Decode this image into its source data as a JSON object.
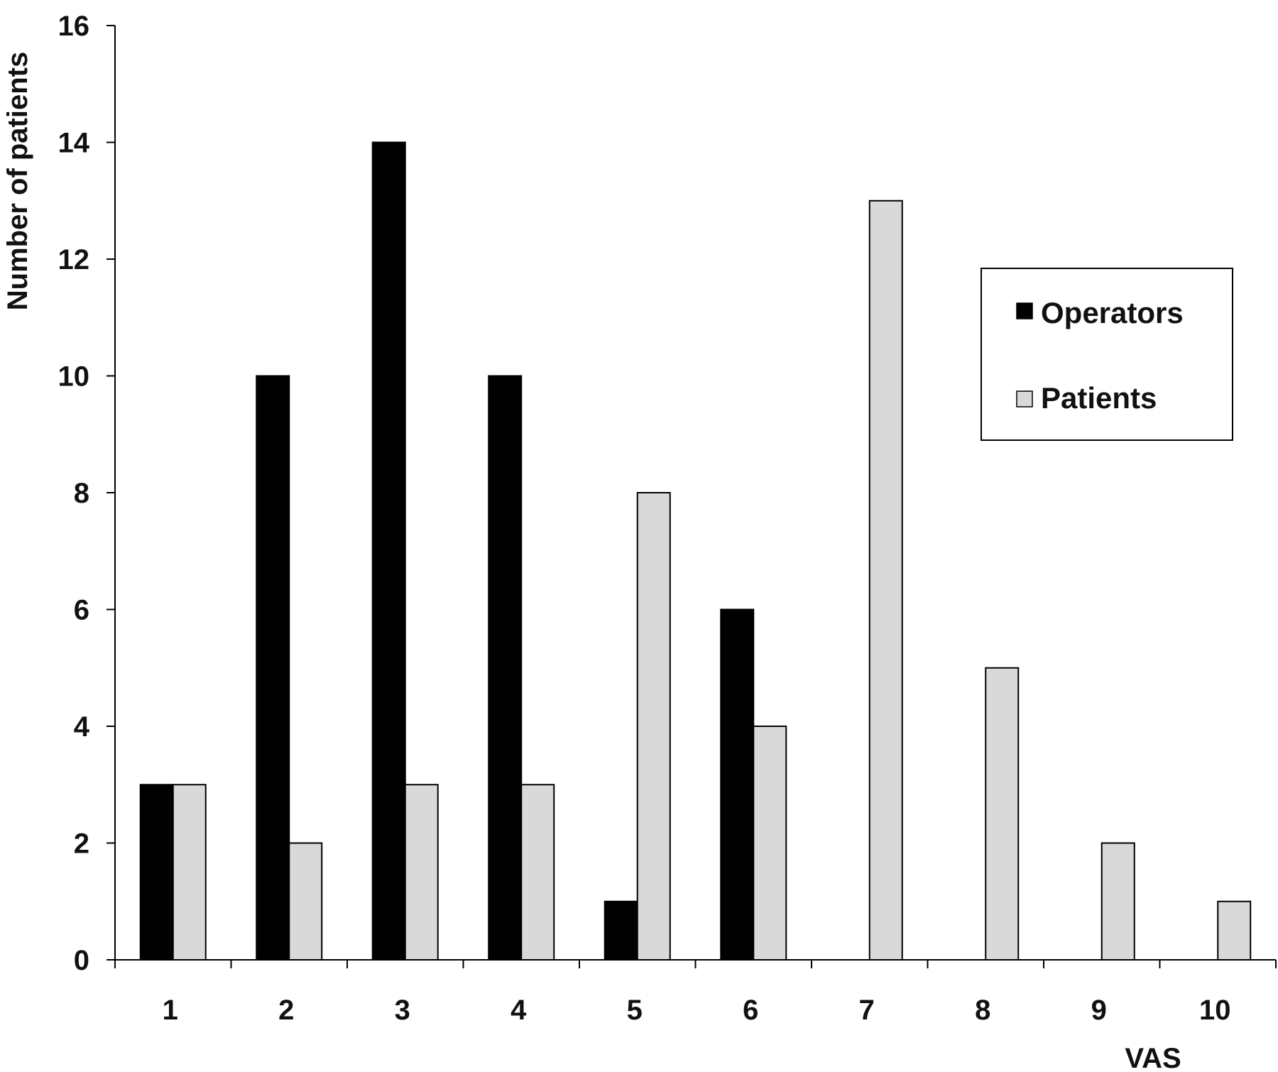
{
  "chart_data": {
    "type": "bar",
    "title": "",
    "xlabel": "VAS",
    "ylabel": "Number of patients",
    "categories": [
      "1",
      "2",
      "3",
      "4",
      "5",
      "6",
      "7",
      "8",
      "9",
      "10"
    ],
    "series": [
      {
        "name": "Operators",
        "values": [
          3,
          10,
          14,
          10,
          1,
          6,
          0,
          0,
          0,
          0
        ],
        "color": "#000000"
      },
      {
        "name": "Patients",
        "values": [
          3,
          2,
          3,
          3,
          8,
          4,
          13,
          5,
          2,
          1
        ],
        "color": "#d9d9d9"
      }
    ],
    "ylim": [
      0,
      16
    ],
    "yticks": [
      "0",
      "2",
      "4",
      "6",
      "8",
      "10",
      "12",
      "14",
      "16"
    ],
    "grid": false,
    "legend_position": "right"
  }
}
